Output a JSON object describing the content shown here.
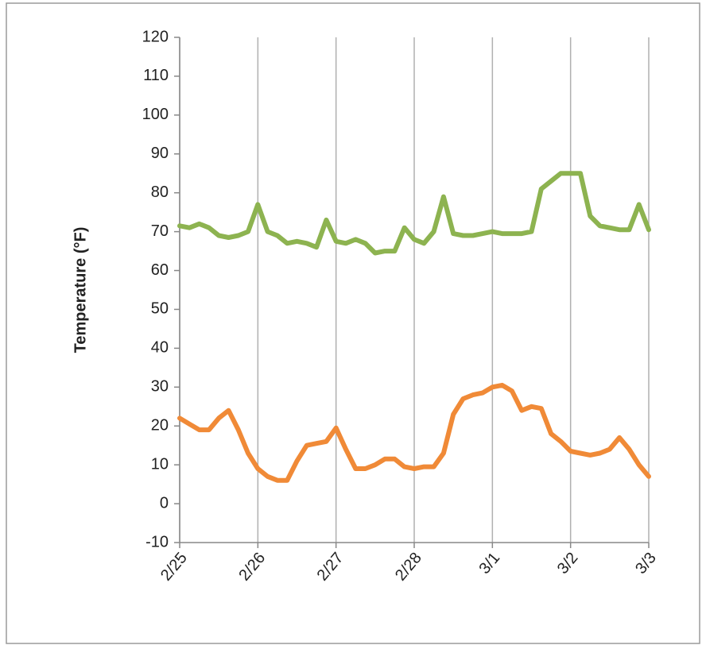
{
  "chart_data": {
    "type": "line",
    "y_label": "Temperature (°F)",
    "x": [
      0,
      0.125,
      0.25,
      0.375,
      0.5,
      0.625,
      0.75,
      0.875,
      1,
      1.125,
      1.25,
      1.375,
      1.5,
      1.625,
      1.75,
      1.875,
      2,
      2.125,
      2.25,
      2.375,
      2.5,
      2.625,
      2.75,
      2.875,
      3,
      3.125,
      3.25,
      3.375,
      3.5,
      3.625,
      3.75,
      3.875,
      4,
      4.125,
      4.25,
      4.375,
      4.5,
      4.625,
      4.75,
      4.875,
      5,
      5.125,
      5.25,
      5.375,
      5.5,
      5.625,
      5.75,
      5.875,
      6
    ],
    "series": [
      {
        "color": "#8db350",
        "values": [
          71.5,
          71,
          72,
          71,
          69,
          68.5,
          69,
          70,
          77,
          70,
          69,
          67,
          67.5,
          67,
          66,
          73,
          67.5,
          67,
          68,
          67,
          64.5,
          65,
          65,
          71,
          68,
          67,
          70,
          79,
          69.5,
          69,
          69,
          69.5,
          70,
          69.5,
          69.5,
          69.5,
          70,
          81,
          83,
          85,
          85,
          85,
          74,
          71.5,
          71,
          70.5,
          70.5,
          77,
          70.5
        ]
      },
      {
        "color": "#f08a37",
        "values": [
          22,
          20.5,
          19,
          19,
          22,
          24,
          19,
          13,
          9,
          7,
          6,
          6,
          11,
          15,
          15.5,
          16,
          19.5,
          14,
          9,
          9,
          10,
          11.5,
          11.5,
          9.5,
          9,
          9.5,
          9.5,
          13,
          23,
          27,
          28,
          28.5,
          30,
          30.5,
          29,
          24,
          25,
          24.5,
          18,
          16,
          13.5,
          13,
          12.5,
          13,
          14,
          17,
          14,
          10,
          7
        ]
      }
    ],
    "xlim": [
      0,
      6
    ],
    "xticks": [
      {
        "value": 0,
        "label": "2/25"
      },
      {
        "value": 1,
        "label": "2/26"
      },
      {
        "value": 2,
        "label": "2/27"
      },
      {
        "value": 3,
        "label": "2/28"
      },
      {
        "value": 4,
        "label": "3/1"
      },
      {
        "value": 5,
        "label": "3/2"
      },
      {
        "value": 6,
        "label": "3/3"
      }
    ],
    "ylim": [
      -10,
      120
    ],
    "yticks": [
      -10,
      0,
      10,
      20,
      30,
      40,
      50,
      60,
      70,
      80,
      90,
      100,
      110,
      120
    ],
    "xgrid": true
  }
}
